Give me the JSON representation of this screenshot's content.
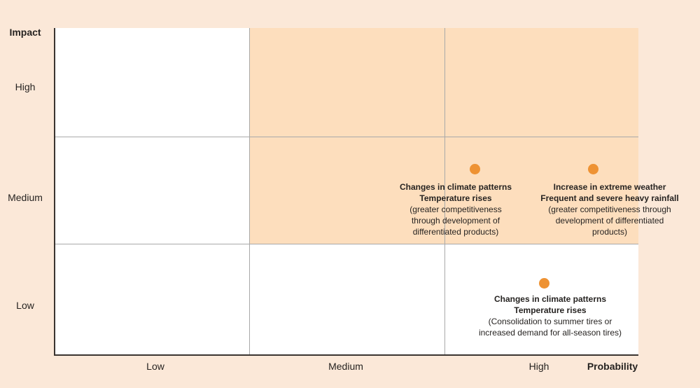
{
  "colors": {
    "background": "#FBE8D8",
    "shaded_cell": "#FDDEBD",
    "dot": "#EE9233",
    "axis_line": "#3A3430",
    "gridline": "#A9A9A9"
  },
  "axis": {
    "y_title": "Impact",
    "y_tick_high": "High",
    "y_tick_medium": "Medium",
    "y_tick_low": "Low",
    "x_tick_low": "Low",
    "x_tick_medium": "Medium",
    "x_tick_high": "High",
    "x_title": "Probability"
  },
  "chart_data": {
    "type": "scatter",
    "xlabel": "Probability",
    "ylabel": "Impact",
    "x_categories": [
      "Low",
      "Medium",
      "High"
    ],
    "y_categories": [
      "High",
      "Medium",
      "Low"
    ],
    "grid": "3x3 matrix",
    "shaded_region": "cells with Medium-to-High probability and Medium-to-High impact are shaded orange",
    "legend_position": "none",
    "points": [
      {
        "probability": "High",
        "impact": "Medium",
        "line1": "Changes in climate patterns",
        "line2": "Temperature rises",
        "line3": "(greater competitiveness",
        "line4": "through development of",
        "line5": "differentiated products)"
      },
      {
        "probability": "High",
        "impact": "Medium",
        "line1": "Increase in extreme weather",
        "line2": "Frequent and severe heavy rainfall",
        "line3": "(greater competitiveness through",
        "line4": "development of differentiated",
        "line5": "products)"
      },
      {
        "probability": "High",
        "impact": "Low",
        "line1": "Changes in climate patterns",
        "line2": "Temperature rises",
        "line3": "(Consolidation to summer tires or",
        "line4": "increased demand for all-season tires)"
      }
    ]
  }
}
